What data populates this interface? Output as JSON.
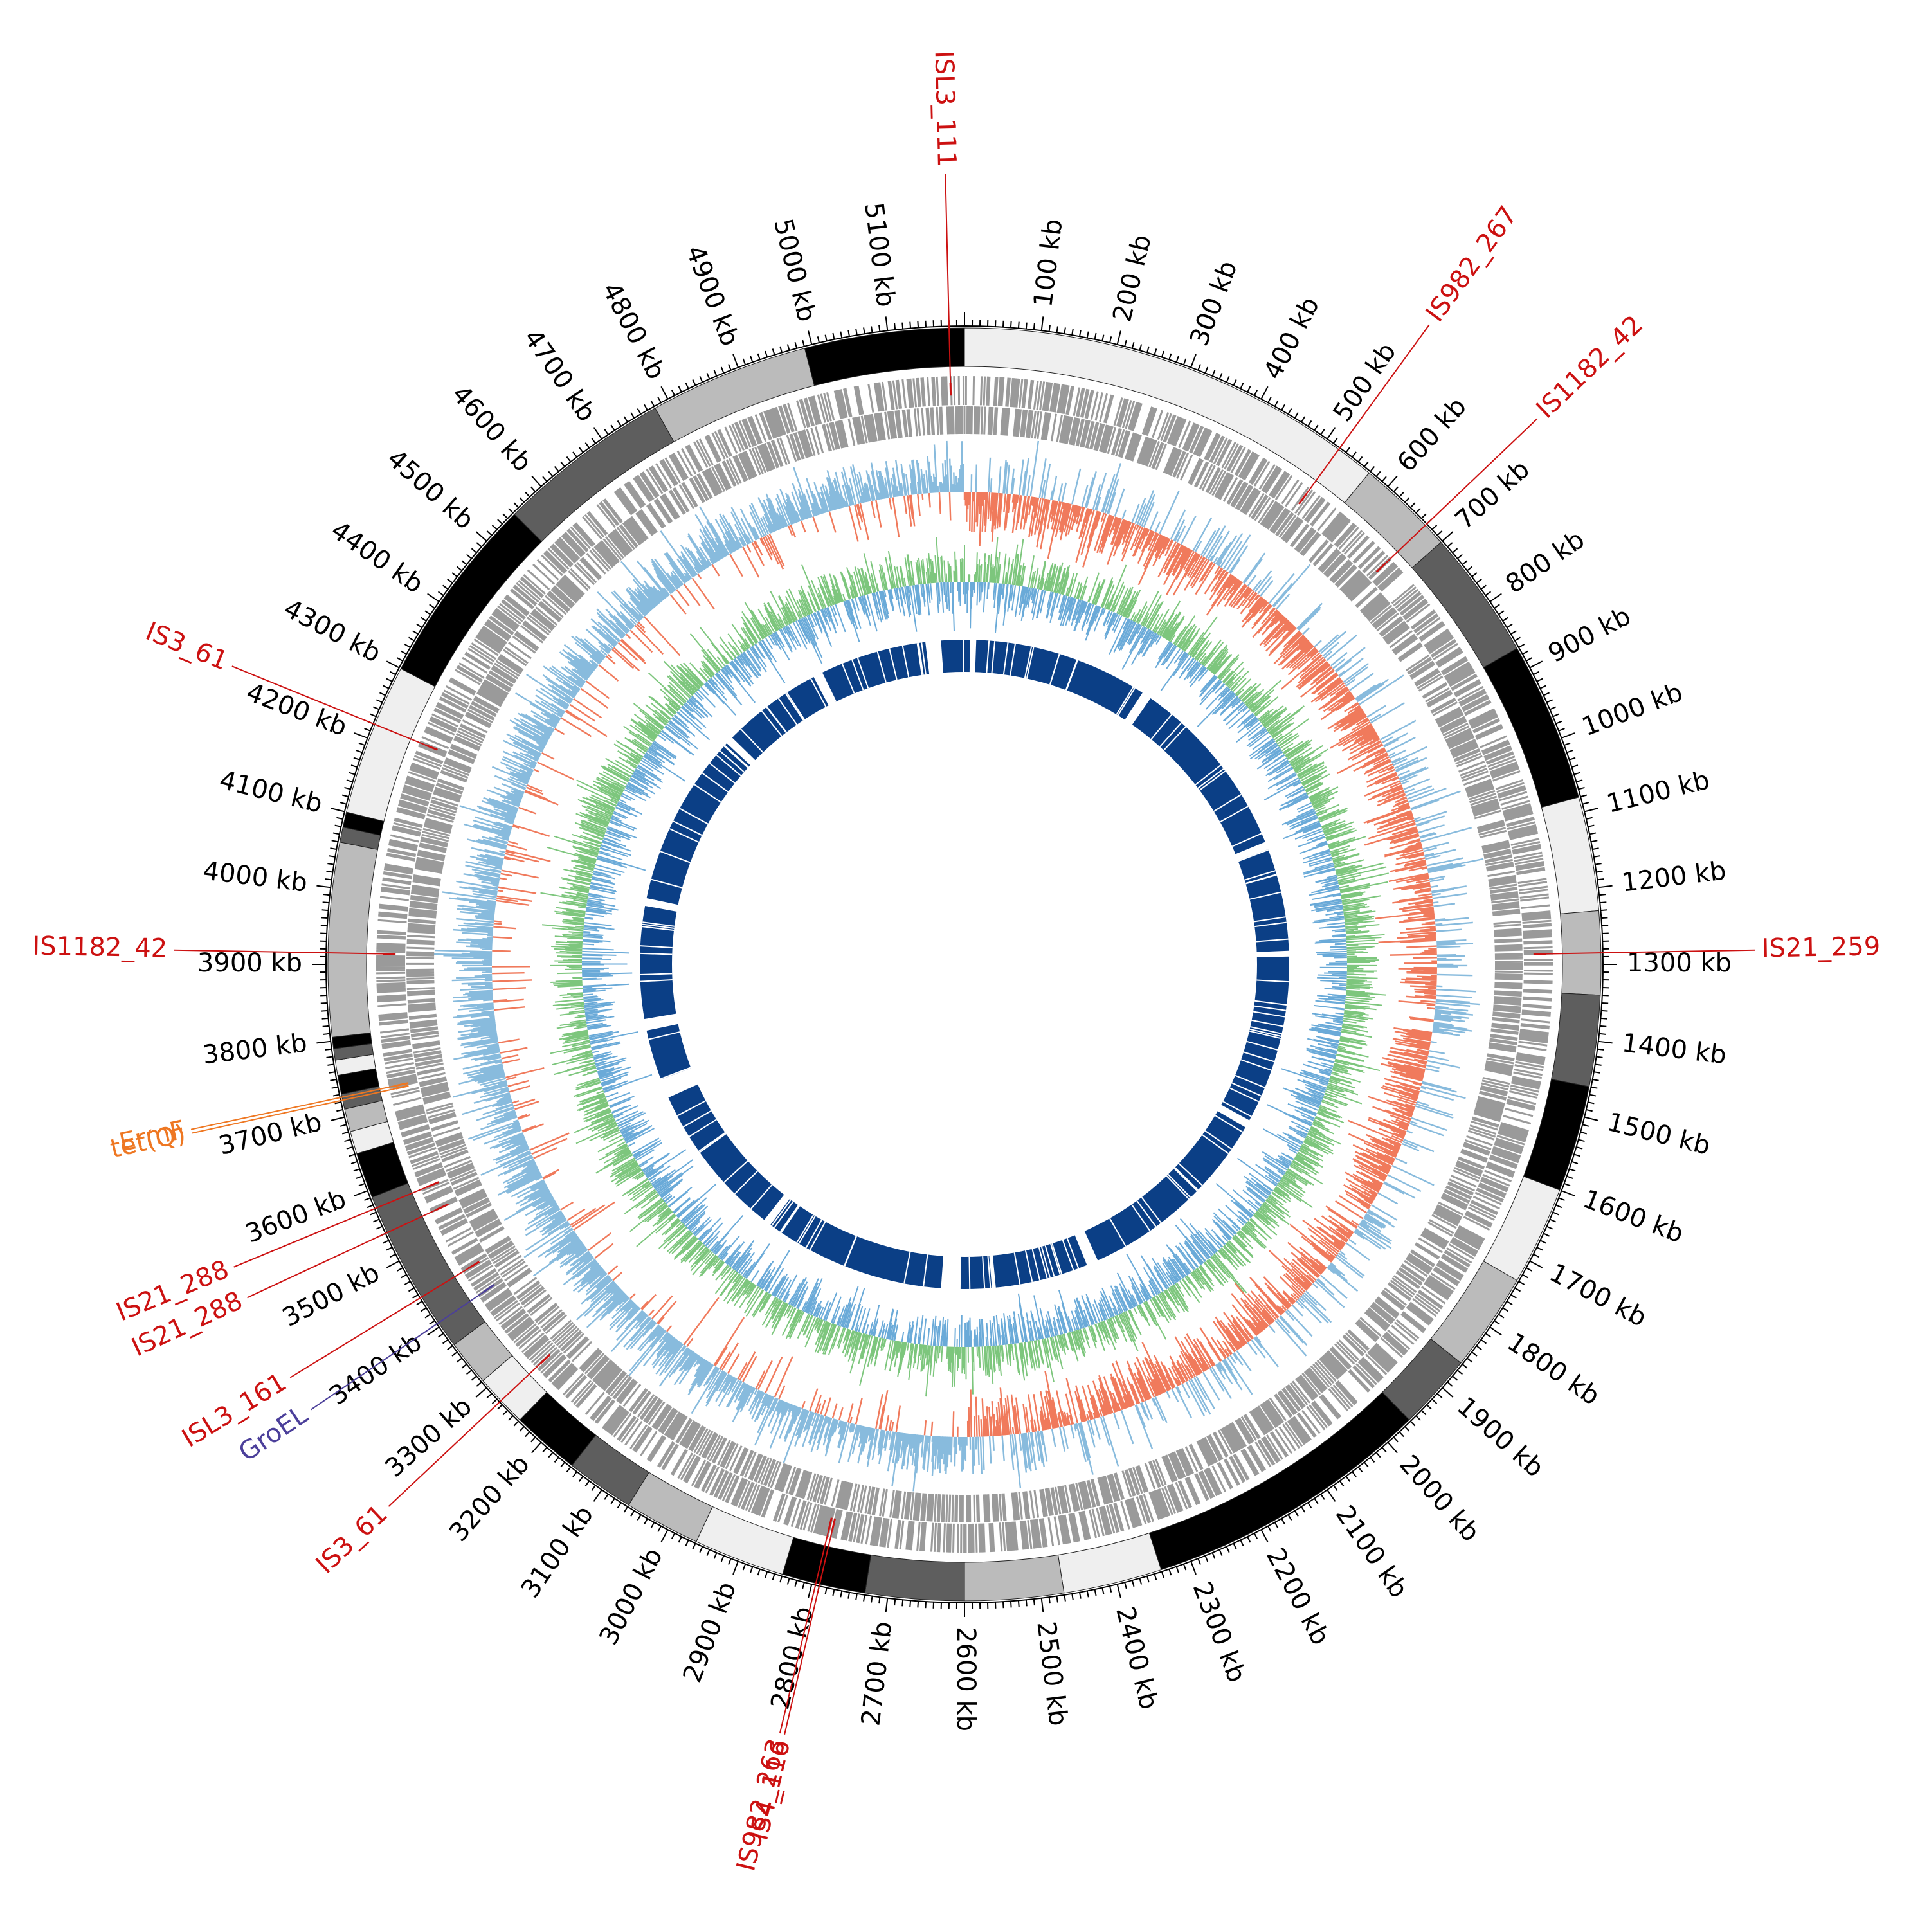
{
  "genome": {
    "length_kb": 5200,
    "tick_interval_kb": 100,
    "tick_unit": "kb",
    "tick_positions_kb": [
      100,
      200,
      300,
      400,
      500,
      600,
      700,
      800,
      900,
      1000,
      1100,
      1200,
      1300,
      1400,
      1500,
      1600,
      1700,
      1800,
      1900,
      2000,
      2100,
      2200,
      2300,
      2400,
      2500,
      2600,
      2700,
      2800,
      2900,
      3000,
      3100,
      3200,
      3300,
      3400,
      3500,
      3600,
      3700,
      3800,
      3900,
      4000,
      4100,
      4200,
      4300,
      4400,
      4500,
      4600,
      4700,
      4800,
      4900,
      5000,
      5100
    ]
  },
  "contigs_kb": [
    {
      "start": 0,
      "end": 570,
      "color": "#efefef"
    },
    {
      "start": 570,
      "end": 700,
      "color": "#bbbbbb"
    },
    {
      "start": 700,
      "end": 870,
      "color": "#5e5e5e"
    },
    {
      "start": 870,
      "end": 1080,
      "color": "#000000"
    },
    {
      "start": 1080,
      "end": 1230,
      "color": "#efefef"
    },
    {
      "start": 1230,
      "end": 1340,
      "color": "#bbbbbb"
    },
    {
      "start": 1340,
      "end": 1460,
      "color": "#5e5e5e"
    },
    {
      "start": 1460,
      "end": 1600,
      "color": "#000000"
    },
    {
      "start": 1600,
      "end": 1730,
      "color": "#efefef"
    },
    {
      "start": 1730,
      "end": 1860,
      "color": "#bbbbbb"
    },
    {
      "start": 1860,
      "end": 1960,
      "color": "#5e5e5e"
    },
    {
      "start": 1960,
      "end": 2340,
      "color": "#000000"
    },
    {
      "start": 2340,
      "end": 2470,
      "color": "#efefef"
    },
    {
      "start": 2470,
      "end": 2600,
      "color": "#bbbbbb"
    },
    {
      "start": 2600,
      "end": 2730,
      "color": "#5e5e5e"
    },
    {
      "start": 2730,
      "end": 2840,
      "color": "#000000"
    },
    {
      "start": 2840,
      "end": 2960,
      "color": "#efefef"
    },
    {
      "start": 2960,
      "end": 3060,
      "color": "#bbbbbb"
    },
    {
      "start": 3060,
      "end": 3150,
      "color": "#5e5e5e"
    },
    {
      "start": 3150,
      "end": 3240,
      "color": "#000000"
    },
    {
      "start": 3240,
      "end": 3310,
      "color": "#efefef"
    },
    {
      "start": 3310,
      "end": 3370,
      "color": "#bbbbbb"
    },
    {
      "start": 3370,
      "end": 3590,
      "color": "#5e5e5e"
    },
    {
      "start": 3590,
      "end": 3650,
      "color": "#000000"
    },
    {
      "start": 3650,
      "end": 3680,
      "color": "#efefef"
    },
    {
      "start": 3680,
      "end": 3710,
      "color": "#bbbbbb"
    },
    {
      "start": 3710,
      "end": 3730,
      "color": "#5e5e5e"
    },
    {
      "start": 3730,
      "end": 3755,
      "color": "#000000"
    },
    {
      "start": 3755,
      "end": 3775,
      "color": "#efefef"
    },
    {
      "start": 3775,
      "end": 3790,
      "color": "#5e5e5e"
    },
    {
      "start": 3790,
      "end": 3805,
      "color": "#000000"
    },
    {
      "start": 3805,
      "end": 4060,
      "color": "#bbbbbb"
    },
    {
      "start": 4060,
      "end": 4080,
      "color": "#5e5e5e"
    },
    {
      "start": 4080,
      "end": 4100,
      "color": "#000000"
    },
    {
      "start": 4100,
      "end": 4300,
      "color": "#efefef"
    },
    {
      "start": 4300,
      "end": 4550,
      "color": "#000000"
    },
    {
      "start": 4550,
      "end": 4780,
      "color": "#5e5e5e"
    },
    {
      "start": 4780,
      "end": 4990,
      "color": "#bbbbbb"
    },
    {
      "start": 4990,
      "end": 5200,
      "color": "#000000"
    }
  ],
  "annotations": [
    {
      "label": "ISL3_111",
      "position_kb": 5180,
      "color": "#cc1111"
    },
    {
      "label": "IS982_267",
      "position_kb": 520,
      "color": "#cc1111"
    },
    {
      "label": "IS1182_42",
      "position_kb": 670,
      "color": "#cc1111"
    },
    {
      "label": "IS21_259",
      "position_kb": 1285,
      "color": "#cc1111"
    },
    {
      "label": "IS982_263",
      "position_kb": 2795,
      "color": "#cc1111"
    },
    {
      "label": "IS4_116",
      "position_kb": 2790,
      "color": "#cc1111"
    },
    {
      "label": "IS3_61",
      "position_kb": 3275,
      "color": "#cc1111"
    },
    {
      "label": "GroEL",
      "position_kb": 3405,
      "color": "#4b3f9a"
    },
    {
      "label": "ISL3_161",
      "position_kb": 3445,
      "color": "#cc1111"
    },
    {
      "label": "IS21_288",
      "position_kb": 3540,
      "color": "#cc1111"
    },
    {
      "label": "IS21_288",
      "position_kb": 3575,
      "color": "#cc1111"
    },
    {
      "label": "tet(Q)",
      "position_kb": 3722,
      "color": "#ee7722"
    },
    {
      "label": "ErmF",
      "position_kb": 3726,
      "color": "#ee7722"
    },
    {
      "label": "IS1182_42",
      "position_kb": 3915,
      "color": "#cc1111"
    },
    {
      "label": "IS3_61",
      "position_kb": 4220,
      "color": "#cc1111"
    }
  ],
  "tracks": {
    "gene_color": "#9a9a9a",
    "gc_skew_positive_color": "#88bbdd",
    "gc_skew_negative_color": "#f07a5c",
    "gc_content_high_color": "#7dc67d",
    "gc_content_low_color": "#6aaad8",
    "homology_color": "#0b3f86"
  }
}
